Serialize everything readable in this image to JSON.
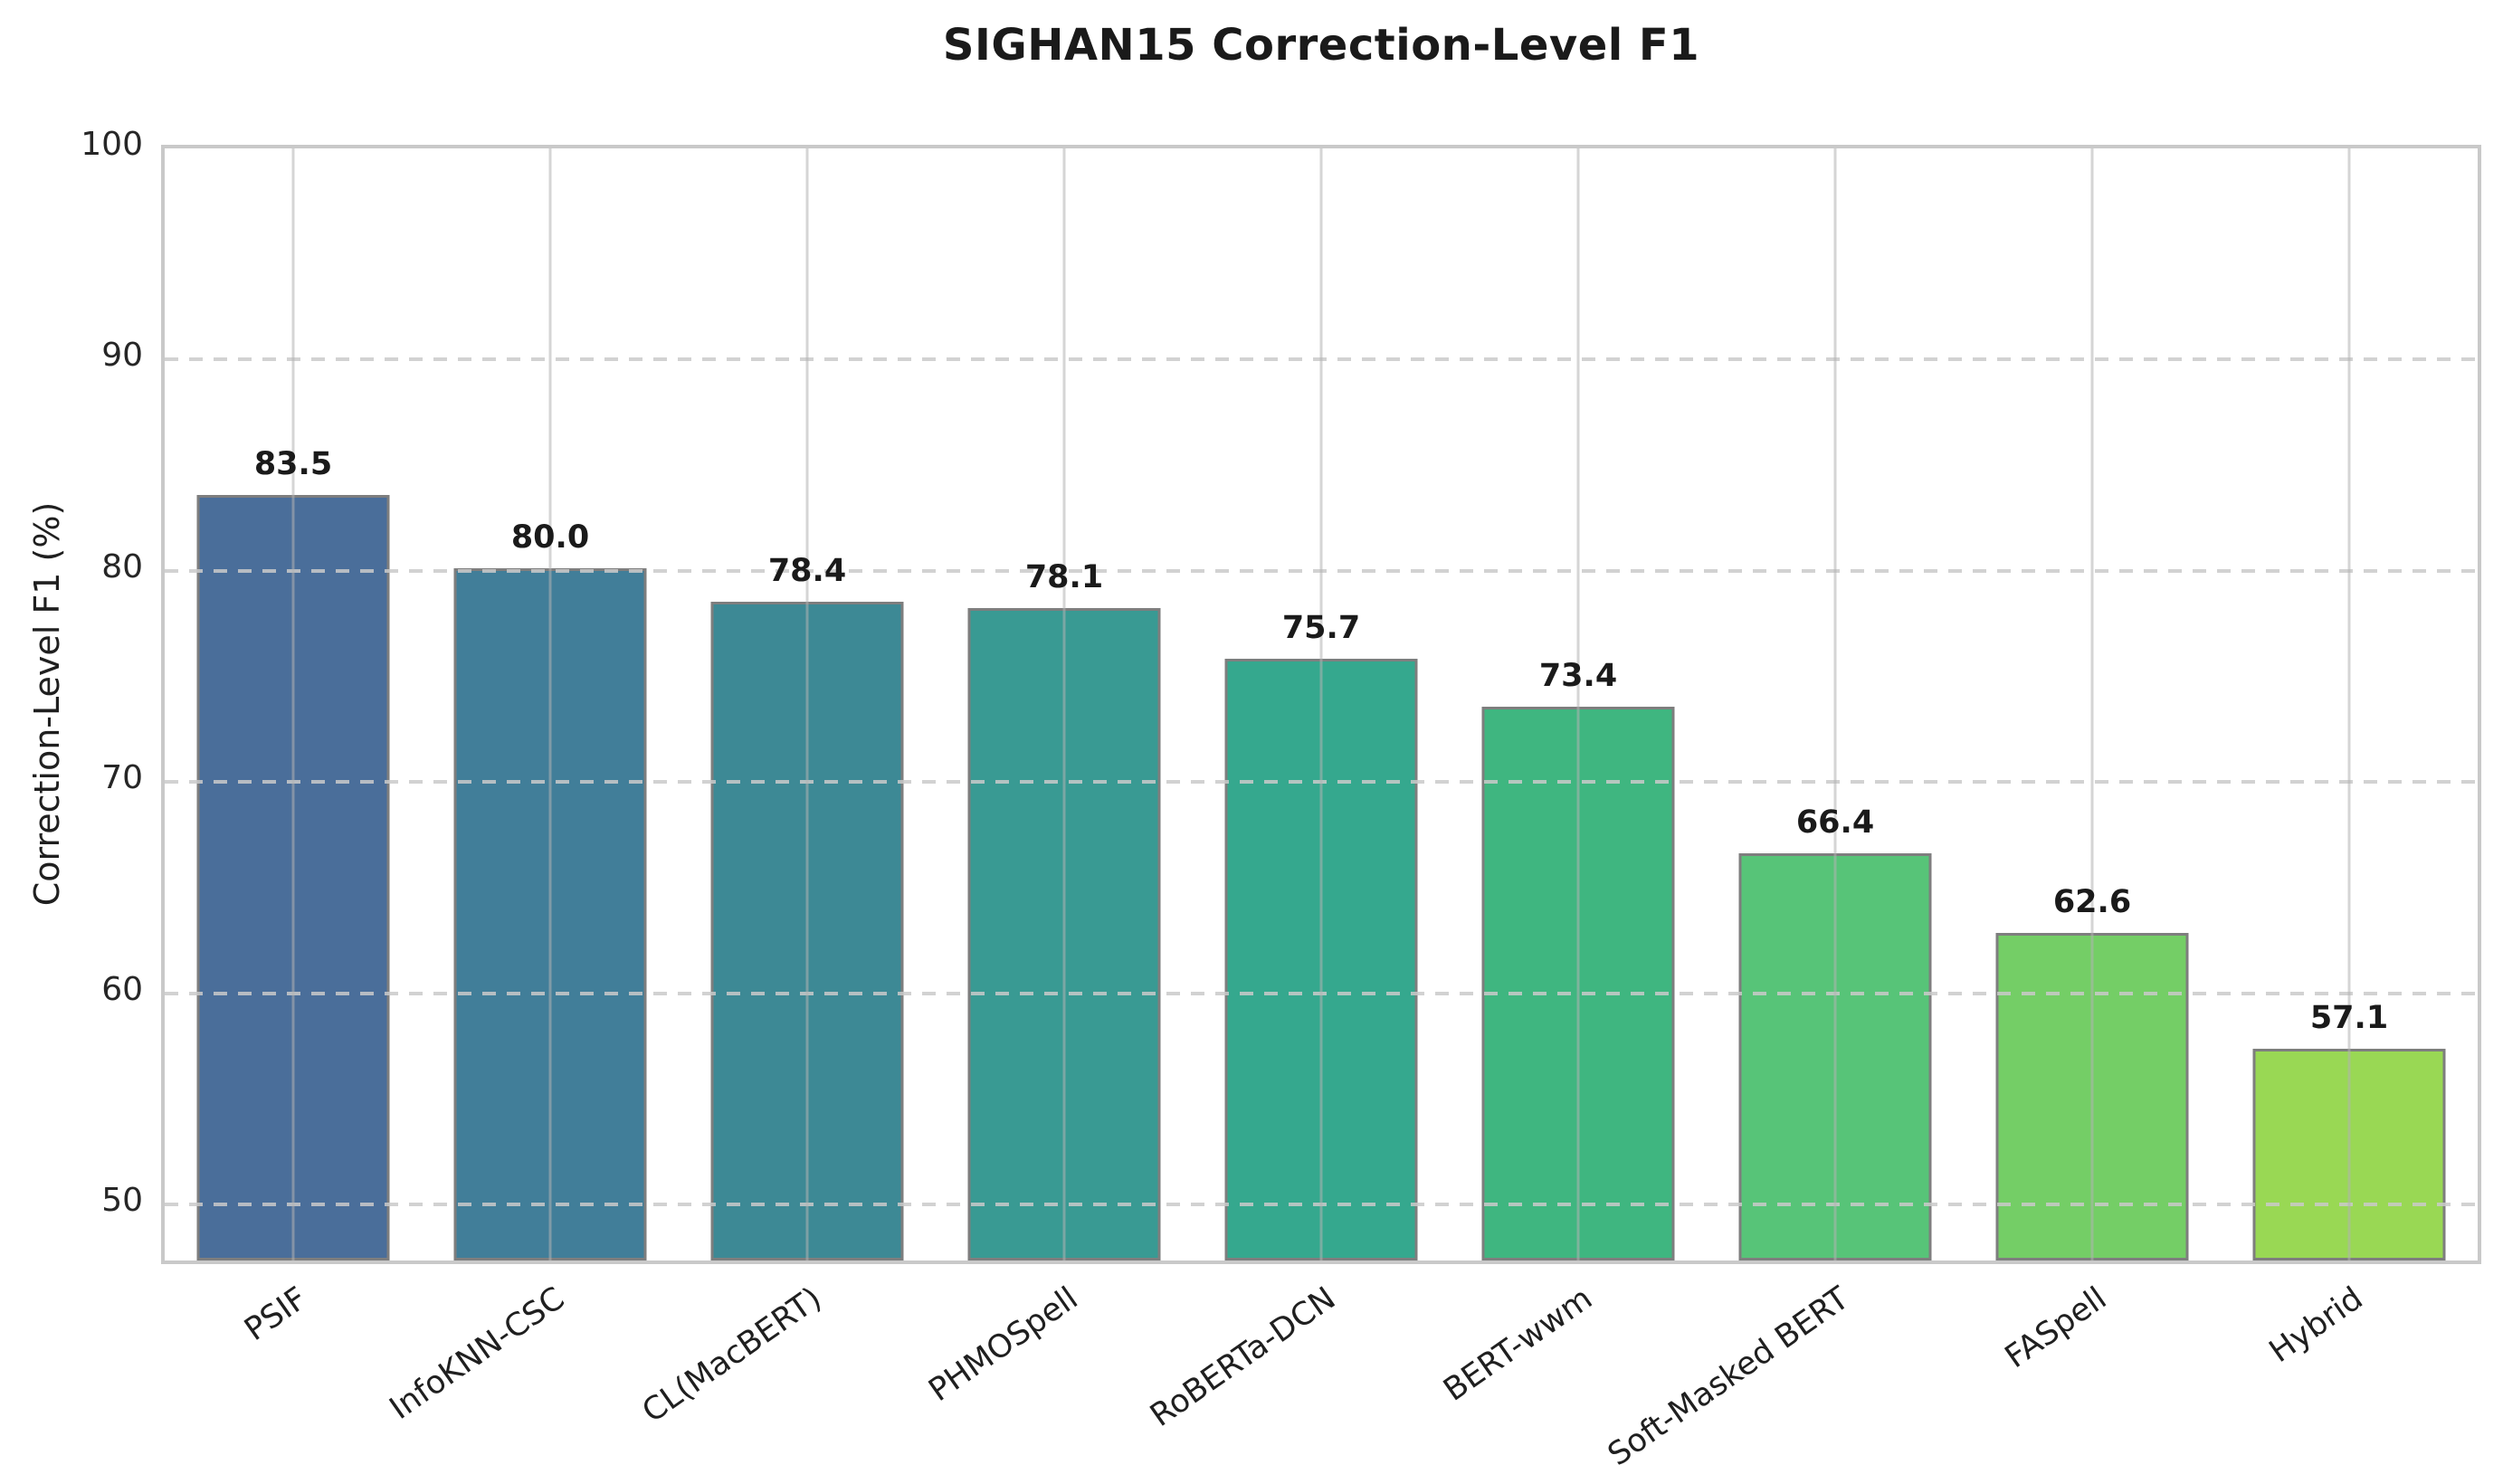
{
  "chart_data": {
    "type": "bar",
    "title": "SIGHAN15 Correction-Level F1",
    "ylabel": "Correction-Level F1 (%)",
    "xlabel": "",
    "categories": [
      "PSIF",
      "InfoKNN-CSC",
      "CL(MacBERT)",
      "PHMOSpell",
      "RoBERTa-DCN",
      "BERT-wwm",
      "Soft-Masked BERT",
      "FASpell",
      "Hybrid"
    ],
    "values": [
      83.5,
      80.0,
      78.4,
      78.1,
      75.7,
      73.4,
      66.4,
      62.6,
      57.1
    ],
    "value_labels": [
      "83.5",
      "80.0",
      "78.4",
      "78.1",
      "75.7",
      "73.4",
      "66.4",
      "62.6",
      "57.1"
    ],
    "bar_colors": [
      "#4a6e9a",
      "#417e99",
      "#3d8995",
      "#399a93",
      "#35a88e",
      "#3fb680",
      "#57c478",
      "#74ce66",
      "#99d854"
    ],
    "bar_edge_color": "#7e7e7e",
    "ylim": [
      47.0,
      100
    ],
    "yticks": [
      50,
      60,
      70,
      80,
      90,
      100
    ],
    "grid": {
      "horizontal": "dashed",
      "vertical": "solid",
      "frame": true
    },
    "legend": "none",
    "colors": {
      "spine": "#c9c9c9",
      "gridline": "#cacaca",
      "text": "#1a1a1a",
      "background": "#ffffff"
    }
  }
}
